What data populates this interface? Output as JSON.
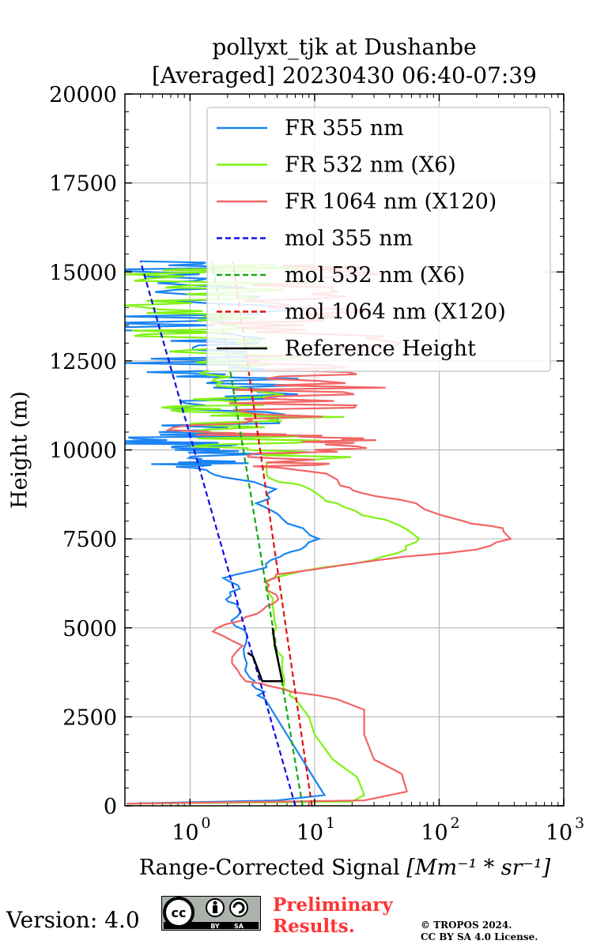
{
  "title_line1": "pollyxt_tjk at Dushanbe",
  "title_line2": "[Averaged] 20230430 06:40-07:39",
  "footer": {
    "version": "Version: 4.0",
    "license_badge": [
      "cc-icon",
      "by-icon",
      "sa-icon"
    ],
    "badge_by": "BY",
    "badge_sa": "SA",
    "preliminary_line1": "Preliminary",
    "preliminary_line2": "Results.",
    "copyright_line1": "© TROPOS 2024.",
    "copyright_line2": "CC BY SA 4.0 License."
  },
  "chart_data": {
    "type": "line",
    "xlabel": "Range-Corrected Signal",
    "xlabel_units": "[Mm⁻¹ * sr⁻¹]",
    "ylabel": "Height (m)",
    "xscale": "log",
    "xlim": [
      0.3,
      1000
    ],
    "ylim": [
      0,
      20000
    ],
    "x_ticks": [
      1,
      10,
      100,
      1000
    ],
    "x_tick_labels": [
      {
        "base": "10",
        "exp": "0"
      },
      {
        "base": "10",
        "exp": "1"
      },
      {
        "base": "10",
        "exp": "2"
      },
      {
        "base": "10",
        "exp": "3"
      }
    ],
    "y_ticks": [
      0,
      2500,
      5000,
      7500,
      10000,
      12500,
      15000,
      17500,
      20000
    ],
    "y_tick_labels": [
      "0",
      "2500",
      "5000",
      "7500",
      "10000",
      "12500",
      "15000",
      "17500",
      "20000"
    ],
    "grid": true,
    "legend_position": "top-right",
    "series": [
      {
        "name": "FR 355 nm",
        "color": "#1a84f2",
        "style": "solid",
        "noisy_above": 9500,
        "points": [
          [
            0.31,
            60
          ],
          [
            5,
            150
          ],
          [
            12,
            300
          ],
          [
            9,
            1000
          ],
          [
            6,
            2000
          ],
          [
            4,
            3000
          ],
          [
            3.5,
            3300
          ],
          [
            3,
            3600
          ],
          [
            2.6,
            4200
          ],
          [
            2.8,
            4800
          ],
          [
            2.2,
            5200
          ],
          [
            2.6,
            5600
          ],
          [
            1.8,
            5800
          ],
          [
            2.5,
            6100
          ],
          [
            1.8,
            6400
          ],
          [
            3.8,
            6700
          ],
          [
            5,
            7000
          ],
          [
            8,
            7200
          ],
          [
            10,
            7500
          ],
          [
            7.5,
            7800
          ],
          [
            5,
            8200
          ],
          [
            3.6,
            8500
          ],
          [
            5,
            8900
          ],
          [
            3,
            9100
          ],
          [
            1.6,
            9300
          ],
          [
            1.3,
            9500
          ],
          [
            0.8,
            9700
          ],
          [
            1.5,
            10000
          ],
          [
            0.7,
            10200
          ],
          [
            1.5,
            10500
          ],
          [
            1.8,
            11000
          ],
          [
            4,
            11500
          ],
          [
            2.5,
            12000
          ],
          [
            1,
            12500
          ],
          [
            3,
            13000
          ],
          [
            0.5,
            13500
          ],
          [
            2,
            14000
          ],
          [
            1,
            14500
          ],
          [
            0.6,
            15000
          ],
          [
            0.4,
            15300
          ]
        ]
      },
      {
        "name": "FR 532 nm (X6)",
        "color": "#80f212",
        "style": "solid",
        "noisy_above": 9500,
        "points": [
          [
            0.31,
            60
          ],
          [
            20,
            120
          ],
          [
            25,
            300
          ],
          [
            22,
            800
          ],
          [
            14,
            1300
          ],
          [
            10,
            2000
          ],
          [
            9,
            2500
          ],
          [
            7,
            3000
          ],
          [
            6,
            3300
          ],
          [
            5.2,
            4000
          ],
          [
            5,
            4500
          ],
          [
            4.8,
            5000
          ],
          [
            4.6,
            5600
          ],
          [
            4,
            6300
          ],
          [
            8,
            6600
          ],
          [
            30,
            6900
          ],
          [
            55,
            7200
          ],
          [
            65,
            7500
          ],
          [
            45,
            7900
          ],
          [
            20,
            8300
          ],
          [
            14,
            8500
          ],
          [
            12,
            8700
          ],
          [
            10,
            8900
          ],
          [
            5.5,
            9100
          ],
          [
            4,
            9300
          ],
          [
            5,
            9800
          ],
          [
            3,
            10200
          ],
          [
            3,
            10700
          ],
          [
            5,
            11000
          ],
          [
            1,
            11300
          ],
          [
            2.5,
            11800
          ],
          [
            0.7,
            12200
          ],
          [
            2.5,
            12700
          ],
          [
            0.8,
            13200
          ],
          [
            1.5,
            13600
          ],
          [
            0.6,
            14000
          ],
          [
            2,
            14500
          ],
          [
            1,
            15000
          ],
          [
            5,
            15200
          ]
        ]
      },
      {
        "name": "FR 1064 nm (X120)",
        "color": "#f26464",
        "style": "solid",
        "noisy_above": 9500,
        "points": [
          [
            0.31,
            60
          ],
          [
            25,
            150
          ],
          [
            55,
            400
          ],
          [
            50,
            900
          ],
          [
            30,
            1300
          ],
          [
            25,
            2000
          ],
          [
            25,
            2700
          ],
          [
            15,
            3000
          ],
          [
            5,
            3300
          ],
          [
            3,
            3500
          ],
          [
            2,
            4000
          ],
          [
            2.5,
            4500
          ],
          [
            1.5,
            4900
          ],
          [
            2.5,
            5200
          ],
          [
            4,
            5500
          ],
          [
            5,
            5800
          ],
          [
            4,
            6200
          ],
          [
            5,
            6500
          ],
          [
            30,
            6900
          ],
          [
            200,
            7200
          ],
          [
            350,
            7500
          ],
          [
            300,
            7800
          ],
          [
            150,
            8000
          ],
          [
            60,
            8500
          ],
          [
            25,
            8800
          ],
          [
            15,
            9000
          ],
          [
            12,
            9500
          ],
          [
            10,
            9800
          ],
          [
            12,
            10200
          ],
          [
            5,
            10400
          ],
          [
            1.5,
            10500
          ],
          [
            10,
            11000
          ],
          [
            6,
            11500
          ],
          [
            15,
            12000
          ],
          [
            4,
            12500
          ],
          [
            20,
            13000
          ],
          [
            3,
            13500
          ],
          [
            15,
            14000
          ],
          [
            5,
            14500
          ],
          [
            20,
            15000
          ],
          [
            10,
            15200
          ]
        ]
      },
      {
        "name": "mol 355 nm",
        "color": "#1010e6",
        "style": "dashed",
        "points": [
          [
            7,
            0
          ],
          [
            0.4,
            15300
          ]
        ]
      },
      {
        "name": "mol 532 nm (X6)",
        "color": "#12a812",
        "style": "dashed",
        "points": [
          [
            8,
            0
          ],
          [
            1.5,
            15300
          ]
        ]
      },
      {
        "name": "mol 1064 nm (X120)",
        "color": "#e01010",
        "style": "dashed",
        "points": [
          [
            9.5,
            0
          ],
          [
            2.2,
            15300
          ]
        ]
      },
      {
        "name": "Reference Height",
        "color": "#000000",
        "style": "solid",
        "points": [
          [
            4.6,
            5000
          ],
          [
            4.8,
            4500
          ],
          [
            5.5,
            3500
          ],
          [
            3.8,
            3500
          ],
          [
            3.2,
            4200
          ],
          [
            2.9,
            4300
          ]
        ]
      }
    ]
  }
}
